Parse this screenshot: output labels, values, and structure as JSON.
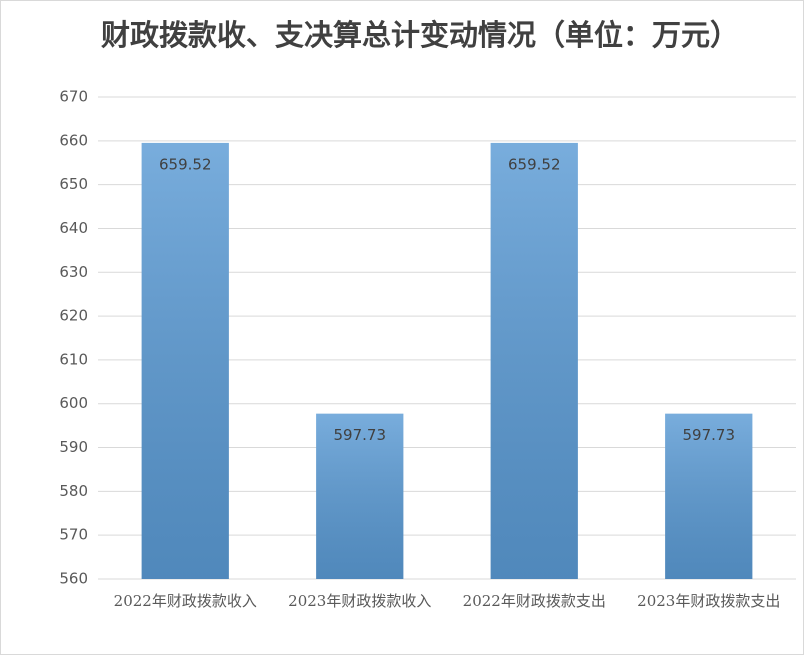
{
  "chart_data": {
    "type": "bar",
    "title": "财政拨款收、支决算总计变动情况（单位：万元）",
    "categories": [
      "2022年财政拨款收入",
      "2023年财政拨款收入",
      "2022年财政拨款支出",
      "2023年财政拨款支出"
    ],
    "values": [
      659.52,
      597.73,
      659.52,
      597.73
    ],
    "color": "#5b9bd5",
    "ylim": [
      560,
      670
    ],
    "yticks": [
      560,
      570,
      580,
      590,
      600,
      610,
      620,
      630,
      640,
      650,
      660,
      670
    ],
    "grid": true
  }
}
